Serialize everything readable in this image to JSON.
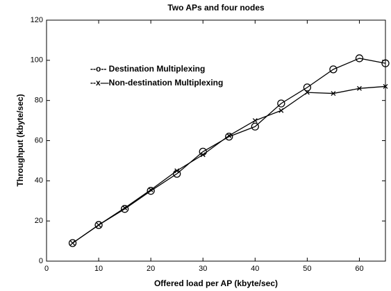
{
  "chart_data": {
    "type": "line",
    "title": "Two APs and four nodes",
    "xlabel": "Offered load per AP (kbyte/sec)",
    "ylabel": "Throughput (kbyte/sec)",
    "x": [
      5,
      10,
      15,
      20,
      25,
      30,
      35,
      40,
      45,
      50,
      55,
      60,
      65
    ],
    "series": [
      {
        "name": "--o-- Destination Multiplexing",
        "color": "#000000",
        "marker": "o",
        "values": [
          9,
          18,
          26,
          35,
          43.5,
          54.5,
          62,
          67,
          78.5,
          86.5,
          95.5,
          101,
          98.5
        ]
      },
      {
        "name": "--x—Non-destination Multiplexing",
        "color": "#000000",
        "marker": "x",
        "values": [
          9,
          18,
          26.5,
          35.5,
          45,
          53,
          62.5,
          70,
          75,
          84,
          83.5,
          86,
          87
        ]
      }
    ],
    "xlim": [
      0,
      65
    ],
    "xticks": [
      0,
      10,
      20,
      30,
      40,
      50,
      60
    ],
    "ylim": [
      0,
      120
    ],
    "yticks": [
      0,
      20,
      40,
      60,
      80,
      100,
      120
    ]
  }
}
